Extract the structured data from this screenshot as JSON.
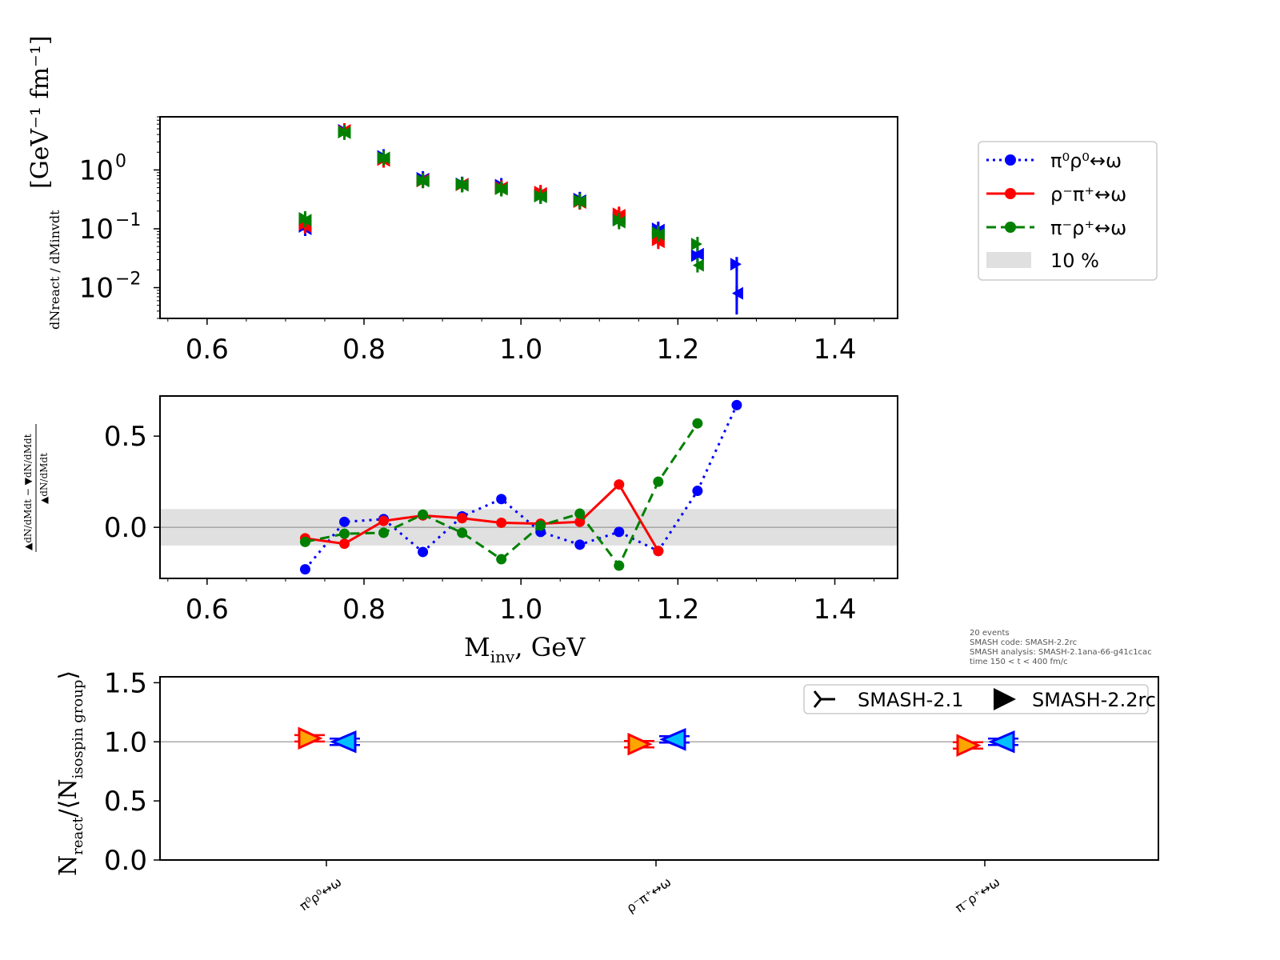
{
  "colors": {
    "pi0rho0": "#0000ff",
    "rhoMpiP": "#ff0000",
    "piMrhoP": "#008000",
    "band": "#e0e0e0",
    "marker_old_a": "#ff0000",
    "marker_old_b": "#ffa500",
    "marker_new_a": "#0000ff",
    "marker_new_b": "#00bfff"
  },
  "legend_top": {
    "entries": [
      "π⁰ρ⁰↔ω",
      "ρ⁻π⁺↔ω",
      "π⁻ρ⁺↔ω",
      "10 %"
    ]
  },
  "legend_bottom": {
    "entries": [
      "SMASH-2.1",
      "SMASH-2.2rc"
    ]
  },
  "info": {
    "line1": "20 events",
    "line2": "SMASH code:      SMASH-2.2rc",
    "line3": "SMASH analysis: SMASH-2.1ana-66-g41c1cac",
    "line4": "time 150 < t < 400 fm/c"
  },
  "chart_data": [
    {
      "type": "scatter",
      "panel": "top",
      "yscale": "log",
      "xlim": [
        0.54,
        1.48
      ],
      "ylim": [
        0.003,
        8
      ],
      "x_ticks": [
        "0.6",
        "0.8",
        "1.0",
        "1.2",
        "1.4"
      ],
      "y_ticks": [
        "10",
        "10",
        "10"
      ],
      "y_tick_exponents": [
        "0",
        "−1",
        "−2"
      ],
      "ylabel_frac": "dNreact / dMinvdt",
      "ylabel_units": "[GeV⁻¹ fm⁻¹]",
      "x": [
        0.725,
        0.775,
        0.825,
        0.875,
        0.925,
        0.975,
        1.025,
        1.075,
        1.125,
        1.175,
        1.225,
        1.275
      ],
      "series": [
        {
          "name": "π⁰ρ⁰↔ω",
          "v21": [
            0.1,
            4.6,
            1.55,
            0.7,
            0.57,
            0.5,
            0.37,
            0.3,
            0.15,
            0.095,
            0.037,
            0.008
          ],
          "v22": [
            0.11,
            4.7,
            1.7,
            0.72,
            0.58,
            0.55,
            0.37,
            0.32,
            0.15,
            0.1,
            0.035,
            0.025
          ]
        },
        {
          "name": "ρ⁻π⁺↔ω",
          "v21": [
            0.11,
            4.7,
            1.45,
            0.67,
            0.57,
            0.5,
            0.4,
            0.28,
            0.17,
            0.06,
            0.0,
            0.0
          ],
          "v22": [
            0.12,
            4.5,
            1.5,
            0.65,
            0.56,
            0.5,
            0.42,
            0.29,
            0.18,
            0.065,
            0.0,
            0.0
          ]
        },
        {
          "name": "π⁻ρ⁺↔ω",
          "v21": [
            0.14,
            4.3,
            1.6,
            0.65,
            0.55,
            0.47,
            0.35,
            0.29,
            0.13,
            0.08,
            0.024,
            0.0
          ],
          "v22": [
            0.15,
            4.4,
            1.6,
            0.66,
            0.57,
            0.48,
            0.36,
            0.3,
            0.14,
            0.085,
            0.055,
            0.0
          ]
        }
      ]
    },
    {
      "type": "line",
      "panel": "middle",
      "xlim": [
        0.54,
        1.48
      ],
      "ylim": [
        -0.28,
        0.72
      ],
      "x_ticks": [
        "0.6",
        "0.8",
        "1.0",
        "1.2",
        "1.4"
      ],
      "y_ticks": [
        "0.0",
        "0.5"
      ],
      "xlabel_sym": "M",
      "xlabel_sub": "inv",
      "xlabel_rest": ", GeV",
      "band": [
        -0.1,
        0.1
      ],
      "x": [
        0.725,
        0.775,
        0.825,
        0.875,
        0.925,
        0.975,
        1.025,
        1.075,
        1.125,
        1.175,
        1.225,
        1.275
      ],
      "series": [
        {
          "name": "π⁰ρ⁰↔ω",
          "values": [
            -0.23,
            0.03,
            0.045,
            -0.135,
            0.06,
            0.155,
            -0.025,
            -0.095,
            -0.025,
            -0.13,
            0.2,
            0.67
          ]
        },
        {
          "name": "ρ⁻π⁺↔ω",
          "values": [
            -0.06,
            -0.09,
            0.035,
            0.065,
            0.05,
            0.025,
            0.02,
            0.03,
            0.235,
            -0.13,
            null,
            null
          ]
        },
        {
          "name": "π⁻ρ⁺↔ω",
          "values": [
            -0.08,
            -0.035,
            -0.03,
            0.07,
            -0.03,
            -0.175,
            0.01,
            0.075,
            -0.21,
            0.25,
            0.57,
            null
          ]
        }
      ]
    },
    {
      "type": "scatter",
      "panel": "bottom",
      "ylim": [
        0,
        1.55
      ],
      "y_ticks": [
        "0.0",
        "0.5",
        "1.0",
        "1.5"
      ],
      "categories": [
        "π⁰ρ⁰↔ω",
        "ρ⁻π⁺↔ω",
        "π⁻ρ⁺↔ω"
      ],
      "series": [
        {
          "name": "SMASH-2.1",
          "values": [
            1.03,
            0.98,
            0.97
          ]
        },
        {
          "name": "SMASH-2.2rc",
          "values": [
            1.0,
            1.02,
            1.0
          ]
        }
      ]
    }
  ]
}
